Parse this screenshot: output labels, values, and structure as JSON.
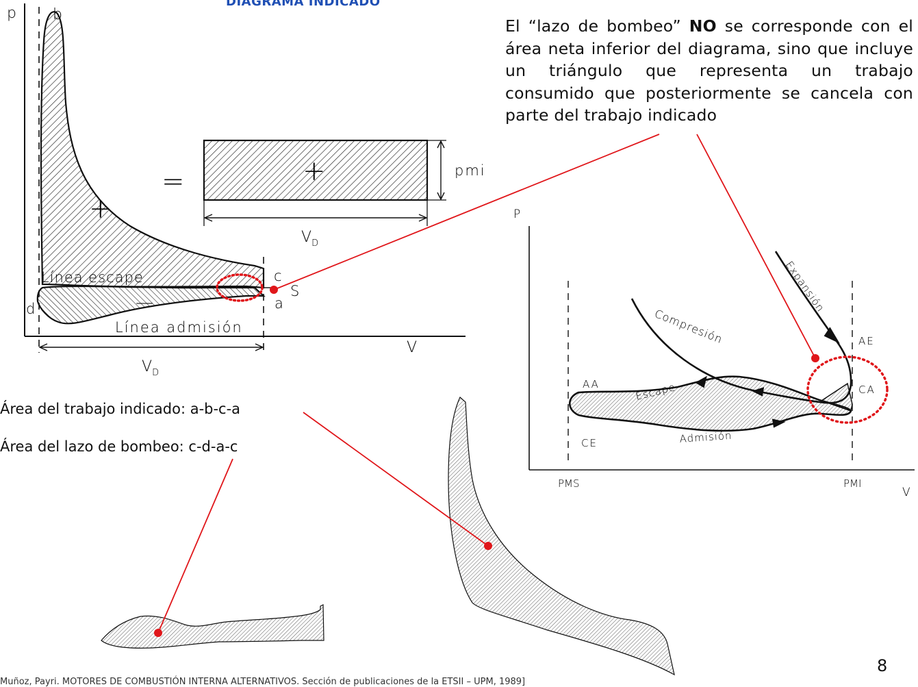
{
  "slide": {
    "title": "DIAGRAMA INDICADO",
    "page_number": "8",
    "footer": "Muñoz, Payri. MOTORES DE COMBUSTIÓN INTERNA ALTERNATIVOS. Sección de publicaciones de la ETSII – UPM, 1989]"
  },
  "note": {
    "part1": "El “lazo de bombeo” ",
    "bold": "NO",
    "part2": " se corresponde con el área neta inferior del diagrama, sino que incluye un triángulo que representa un trabajo consumido que posteriormente se cancela con parte del trabajo indicado"
  },
  "areas": {
    "indicated": "Área del trabajo indicado: a-b-c-a",
    "pumping": "Área del lazo de bombeo: c-d-a-c"
  },
  "left_diagram": {
    "axis_p": "p",
    "axis_v": "V",
    "point_b": "b",
    "point_c": "c",
    "point_a": "a",
    "point_d": "d",
    "point_s": "S",
    "plus": "+",
    "minus": "—",
    "equals": "=",
    "pmi": "pmi",
    "vd_top": "V",
    "vd_top_sub": "D",
    "vd_bottom": "V",
    "vd_bottom_sub": "D",
    "exhaust_line": "Línea escape",
    "intake_line": "Línea admisión"
  },
  "right_diagram": {
    "axis_p": "P",
    "axis_v": "V",
    "pms": "PMS",
    "pmi": "PMI",
    "aa": "AA",
    "ce": "CE",
    "ae": "AE",
    "ca": "CA",
    "expansion": "Expansión",
    "compression": "Compresión",
    "exhaust": "Escape",
    "intake": "Admisión"
  },
  "colors": {
    "title": "#1f4fb4",
    "leader": "#e0161a",
    "ink": "#1a1a1a"
  }
}
